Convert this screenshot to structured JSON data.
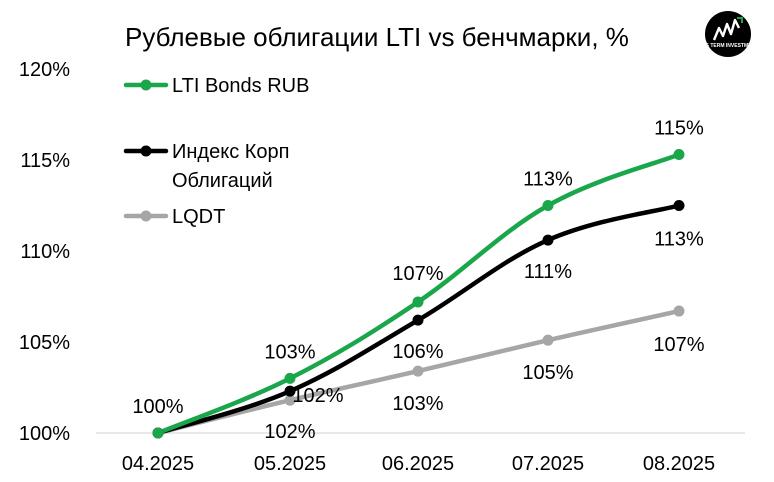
{
  "chart_data": {
    "type": "line",
    "title": "Рублевые облигации LTI vs бенчмарки, %",
    "categories": [
      "04.2025",
      "05.2025",
      "06.2025",
      "07.2025",
      "08.2025"
    ],
    "ylim": [
      100,
      120
    ],
    "yticks": [
      "100%",
      "105%",
      "110%",
      "115%",
      "120%"
    ],
    "ytick_values": [
      100,
      105,
      110,
      115,
      120
    ],
    "grid": false,
    "legend_placement": "top-left",
    "series": [
      {
        "name": "LTI Bonds RUB",
        "color": "#1aa64a",
        "values": [
          100.0,
          103.0,
          107.2,
          112.5,
          115.3
        ],
        "labels": [
          "100%",
          "103%",
          "107%",
          "113%",
          "115%"
        ]
      },
      {
        "name": "Индекс Корп Облигаций",
        "name_lines": [
          "Индекс Корп",
          "Облигаций"
        ],
        "color": "#000000",
        "values": [
          100.0,
          102.3,
          106.2,
          110.6,
          112.5
        ],
        "labels": [
          "",
          "102%",
          "106%",
          "111%",
          "113%"
        ]
      },
      {
        "name": "LQDT",
        "color": "#a6a6a6",
        "values": [
          100.0,
          101.8,
          103.4,
          105.1,
          106.7
        ],
        "labels": [
          "",
          "102%",
          "103%",
          "105%",
          "107%"
        ]
      }
    ]
  },
  "logo": {
    "text": "LONG TERM INVESTMENTS",
    "icon": "chart-growth-logo-icon"
  }
}
